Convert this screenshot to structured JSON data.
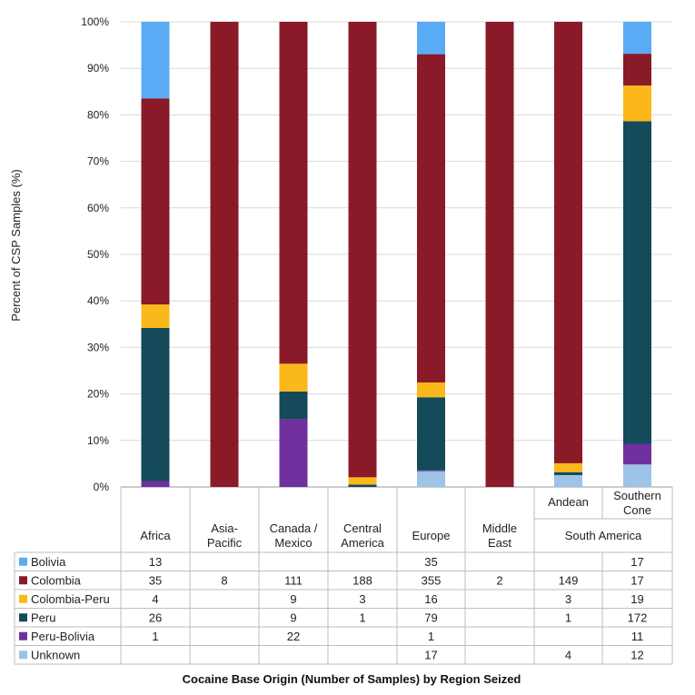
{
  "chart_data": {
    "type": "stacked-bar-100",
    "ylabel": "Percent of CSP Samples (%)",
    "xlabel": "Cocaine Base Origin (Number of Samples) by Region Seized",
    "yticks": [
      "0%",
      "10%",
      "20%",
      "30%",
      "40%",
      "50%",
      "60%",
      "70%",
      "80%",
      "90%",
      "100%"
    ],
    "ylim": [
      0,
      100
    ],
    "categories": [
      {
        "id": "africa",
        "label": "Africa"
      },
      {
        "id": "asia-pacific",
        "label": "Asia-Pacific"
      },
      {
        "id": "canada-mexico",
        "label": "Canada / Mexico"
      },
      {
        "id": "central-america",
        "label": "Central America"
      },
      {
        "id": "europe",
        "label": "Europe"
      },
      {
        "id": "middle-east",
        "label": "Middle East"
      },
      {
        "id": "andean",
        "label": "Andean"
      },
      {
        "id": "southern-cone",
        "label": "Southern Cone"
      }
    ],
    "group_label": "South America",
    "series": [
      {
        "name": "Bolivia",
        "color": "#5aabf5",
        "values": [
          13,
          null,
          null,
          null,
          35,
          null,
          null,
          17
        ]
      },
      {
        "name": "Colombia",
        "color": "#8a1a28",
        "values": [
          35,
          8,
          111,
          188,
          355,
          2,
          149,
          17
        ]
      },
      {
        "name": "Colombia-Peru",
        "color": "#fbb81a",
        "values": [
          4,
          null,
          9,
          3,
          16,
          null,
          3,
          19
        ]
      },
      {
        "name": "Peru",
        "color": "#144a5a",
        "values": [
          26,
          null,
          9,
          1,
          79,
          null,
          1,
          172
        ]
      },
      {
        "name": "Peru-Bolivia",
        "color": "#7030a0",
        "values": [
          1,
          null,
          22,
          null,
          1,
          null,
          null,
          11
        ]
      },
      {
        "name": "Unknown",
        "color": "#9dc3e6",
        "values": [
          null,
          null,
          null,
          null,
          17,
          null,
          4,
          12
        ]
      }
    ]
  }
}
